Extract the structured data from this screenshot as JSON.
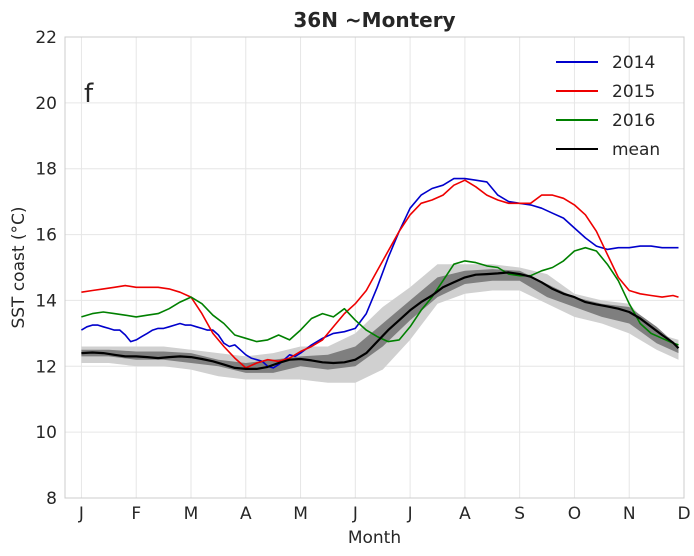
{
  "chart_data": {
    "type": "line",
    "title": "36N ~Montery",
    "panel_label": "f",
    "xlabel": "Month",
    "ylabel": "SST coast (°C)",
    "ylim": [
      8,
      22
    ],
    "yticks": [
      8,
      10,
      12,
      14,
      16,
      18,
      20,
      22
    ],
    "xlim": [
      -0.3,
      11.0
    ],
    "xtick_labels": [
      "J",
      "F",
      "M",
      "A",
      "M",
      "J",
      "J",
      "A",
      "S",
      "O",
      "N",
      "D"
    ],
    "grid": true,
    "legend_position": "top-right",
    "series": [
      {
        "name": "2014",
        "color": "#0000cc",
        "x": [
          0.0,
          0.1,
          0.2,
          0.3,
          0.4,
          0.5,
          0.6,
          0.7,
          0.8,
          0.9,
          1.0,
          1.1,
          1.2,
          1.3,
          1.4,
          1.5,
          1.6,
          1.7,
          1.8,
          1.9,
          2.0,
          2.1,
          2.2,
          2.3,
          2.4,
          2.5,
          2.6,
          2.7,
          2.8,
          2.9,
          3.0,
          3.1,
          3.2,
          3.3,
          3.4,
          3.5,
          3.6,
          3.7,
          3.8,
          3.9,
          4.0,
          4.2,
          4.4,
          4.6,
          4.8,
          5.0,
          5.2,
          5.4,
          5.6,
          5.8,
          6.0,
          6.2,
          6.4,
          6.6,
          6.8,
          7.0,
          7.2,
          7.4,
          7.6,
          7.8,
          8.0,
          8.2,
          8.4,
          8.6,
          8.8,
          9.0,
          9.2,
          9.4,
          9.6,
          9.8,
          10.0,
          10.2,
          10.4,
          10.6,
          10.8,
          10.9
        ],
        "values": [
          13.1,
          13.2,
          13.25,
          13.25,
          13.2,
          13.15,
          13.1,
          13.1,
          12.95,
          12.75,
          12.8,
          12.9,
          13.0,
          13.1,
          13.15,
          13.15,
          13.2,
          13.25,
          13.3,
          13.25,
          13.25,
          13.2,
          13.15,
          13.1,
          13.1,
          12.95,
          12.7,
          12.6,
          12.65,
          12.5,
          12.35,
          12.25,
          12.2,
          12.15,
          12.0,
          11.95,
          12.05,
          12.2,
          12.35,
          12.3,
          12.4,
          12.65,
          12.85,
          13.0,
          13.05,
          13.15,
          13.6,
          14.4,
          15.3,
          16.1,
          16.8,
          17.2,
          17.4,
          17.5,
          17.7,
          17.7,
          17.65,
          17.6,
          17.2,
          17.0,
          16.95,
          16.9,
          16.8,
          16.65,
          16.5,
          16.2,
          15.9,
          15.65,
          15.55,
          15.6,
          15.6,
          15.65,
          15.65,
          15.6,
          15.6,
          15.6
        ]
      },
      {
        "name": "2015",
        "color": "#ee0000",
        "x": [
          0.0,
          0.2,
          0.4,
          0.6,
          0.8,
          1.0,
          1.2,
          1.4,
          1.6,
          1.8,
          2.0,
          2.2,
          2.4,
          2.6,
          2.8,
          3.0,
          3.2,
          3.4,
          3.6,
          3.8,
          4.0,
          4.2,
          4.4,
          4.6,
          4.8,
          5.0,
          5.2,
          5.4,
          5.6,
          5.8,
          6.0,
          6.2,
          6.4,
          6.6,
          6.8,
          7.0,
          7.2,
          7.4,
          7.6,
          7.8,
          8.0,
          8.2,
          8.4,
          8.6,
          8.8,
          9.0,
          9.2,
          9.4,
          9.6,
          9.8,
          10.0,
          10.2,
          10.4,
          10.6,
          10.8,
          10.9
        ],
        "values": [
          14.25,
          14.3,
          14.35,
          14.4,
          14.45,
          14.4,
          14.4,
          14.4,
          14.35,
          14.25,
          14.1,
          13.6,
          13.0,
          12.6,
          12.25,
          11.95,
          12.1,
          12.2,
          12.15,
          12.25,
          12.45,
          12.6,
          12.8,
          13.2,
          13.6,
          13.9,
          14.3,
          14.9,
          15.5,
          16.1,
          16.6,
          16.95,
          17.05,
          17.2,
          17.5,
          17.65,
          17.45,
          17.2,
          17.05,
          16.95,
          16.95,
          16.95,
          17.2,
          17.2,
          17.1,
          16.9,
          16.6,
          16.1,
          15.4,
          14.7,
          14.3,
          14.2,
          14.15,
          14.1,
          14.15,
          14.1
        ]
      },
      {
        "name": "2016",
        "color": "#008000",
        "x": [
          0.0,
          0.2,
          0.4,
          0.6,
          0.8,
          1.0,
          1.2,
          1.4,
          1.6,
          1.8,
          2.0,
          2.2,
          2.4,
          2.6,
          2.8,
          3.0,
          3.2,
          3.4,
          3.6,
          3.8,
          4.0,
          4.2,
          4.4,
          4.6,
          4.8,
          5.0,
          5.2,
          5.4,
          5.6,
          5.8,
          6.0,
          6.2,
          6.4,
          6.6,
          6.8,
          7.0,
          7.2,
          7.4,
          7.6,
          7.8,
          8.0,
          8.2,
          8.4,
          8.6,
          8.8,
          9.0,
          9.2,
          9.4,
          9.6,
          9.8,
          10.0,
          10.2,
          10.4,
          10.6,
          10.8,
          10.9
        ],
        "values": [
          13.5,
          13.6,
          13.65,
          13.6,
          13.55,
          13.5,
          13.55,
          13.6,
          13.75,
          13.95,
          14.1,
          13.9,
          13.55,
          13.3,
          12.95,
          12.85,
          12.75,
          12.8,
          12.95,
          12.8,
          13.1,
          13.45,
          13.6,
          13.5,
          13.75,
          13.4,
          13.1,
          12.9,
          12.75,
          12.8,
          13.2,
          13.7,
          14.1,
          14.6,
          15.1,
          15.2,
          15.15,
          15.05,
          15.0,
          14.8,
          14.75,
          14.75,
          14.9,
          15.0,
          15.2,
          15.5,
          15.6,
          15.5,
          15.1,
          14.6,
          13.9,
          13.3,
          13.0,
          12.85,
          12.7,
          12.65
        ]
      },
      {
        "name": "mean",
        "color": "#000000",
        "x": [
          0.0,
          0.2,
          0.4,
          0.6,
          0.8,
          1.0,
          1.2,
          1.4,
          1.6,
          1.8,
          2.0,
          2.2,
          2.4,
          2.6,
          2.8,
          3.0,
          3.2,
          3.4,
          3.6,
          3.8,
          4.0,
          4.2,
          4.4,
          4.6,
          4.8,
          5.0,
          5.2,
          5.4,
          5.6,
          5.8,
          6.0,
          6.2,
          6.4,
          6.6,
          6.8,
          7.0,
          7.2,
          7.4,
          7.6,
          7.8,
          8.0,
          8.2,
          8.4,
          8.6,
          8.8,
          9.0,
          9.2,
          9.4,
          9.6,
          9.8,
          10.0,
          10.2,
          10.4,
          10.6,
          10.8,
          10.9
        ],
        "values": [
          12.4,
          12.42,
          12.4,
          12.35,
          12.3,
          12.3,
          12.28,
          12.25,
          12.28,
          12.3,
          12.28,
          12.22,
          12.15,
          12.05,
          11.95,
          11.92,
          11.92,
          11.98,
          12.1,
          12.2,
          12.22,
          12.18,
          12.12,
          12.1,
          12.12,
          12.2,
          12.4,
          12.75,
          13.1,
          13.4,
          13.7,
          13.95,
          14.15,
          14.4,
          14.55,
          14.7,
          14.78,
          14.8,
          14.82,
          14.85,
          14.8,
          14.72,
          14.55,
          14.35,
          14.2,
          14.1,
          13.95,
          13.88,
          13.82,
          13.75,
          13.65,
          13.45,
          13.2,
          12.95,
          12.72,
          12.55
        ]
      }
    ],
    "bands": [
      {
        "name": "light-band",
        "color": "#d0d0d0",
        "x": [
          0.0,
          0.5,
          1.0,
          1.5,
          2.0,
          2.5,
          3.0,
          3.5,
          4.0,
          4.5,
          5.0,
          5.5,
          6.0,
          6.5,
          7.0,
          7.5,
          8.0,
          8.5,
          9.0,
          9.5,
          10.0,
          10.5,
          10.9
        ],
        "lower": [
          12.1,
          12.1,
          12.0,
          12.0,
          11.9,
          11.7,
          11.6,
          11.6,
          11.6,
          11.5,
          11.5,
          11.9,
          12.8,
          13.9,
          14.2,
          14.3,
          14.3,
          13.9,
          13.5,
          13.3,
          13.0,
          12.5,
          12.2
        ],
        "upper": [
          12.6,
          12.6,
          12.6,
          12.6,
          12.5,
          12.4,
          12.3,
          12.4,
          12.6,
          12.6,
          13.0,
          13.8,
          14.4,
          15.1,
          15.1,
          15.1,
          15.0,
          14.8,
          14.2,
          14.0,
          13.9,
          13.0,
          12.8
        ]
      },
      {
        "name": "dark-band",
        "color": "#7f7f7f",
        "x": [
          0.0,
          0.5,
          1.0,
          1.5,
          2.0,
          2.5,
          3.0,
          3.5,
          4.0,
          4.5,
          5.0,
          5.5,
          6.0,
          6.5,
          7.0,
          7.5,
          8.0,
          8.5,
          9.0,
          9.5,
          10.0,
          10.5,
          10.9
        ],
        "lower": [
          12.3,
          12.3,
          12.2,
          12.2,
          12.1,
          12.0,
          11.8,
          11.8,
          12.0,
          11.9,
          12.0,
          12.6,
          13.4,
          14.1,
          14.5,
          14.6,
          14.6,
          14.1,
          13.8,
          13.5,
          13.3,
          12.7,
          12.4
        ],
        "upper": [
          12.5,
          12.5,
          12.45,
          12.45,
          12.4,
          12.2,
          12.1,
          12.2,
          12.3,
          12.35,
          12.6,
          13.3,
          14.0,
          14.7,
          14.9,
          14.95,
          14.9,
          14.5,
          14.1,
          13.9,
          13.8,
          13.2,
          12.6
        ]
      }
    ]
  }
}
